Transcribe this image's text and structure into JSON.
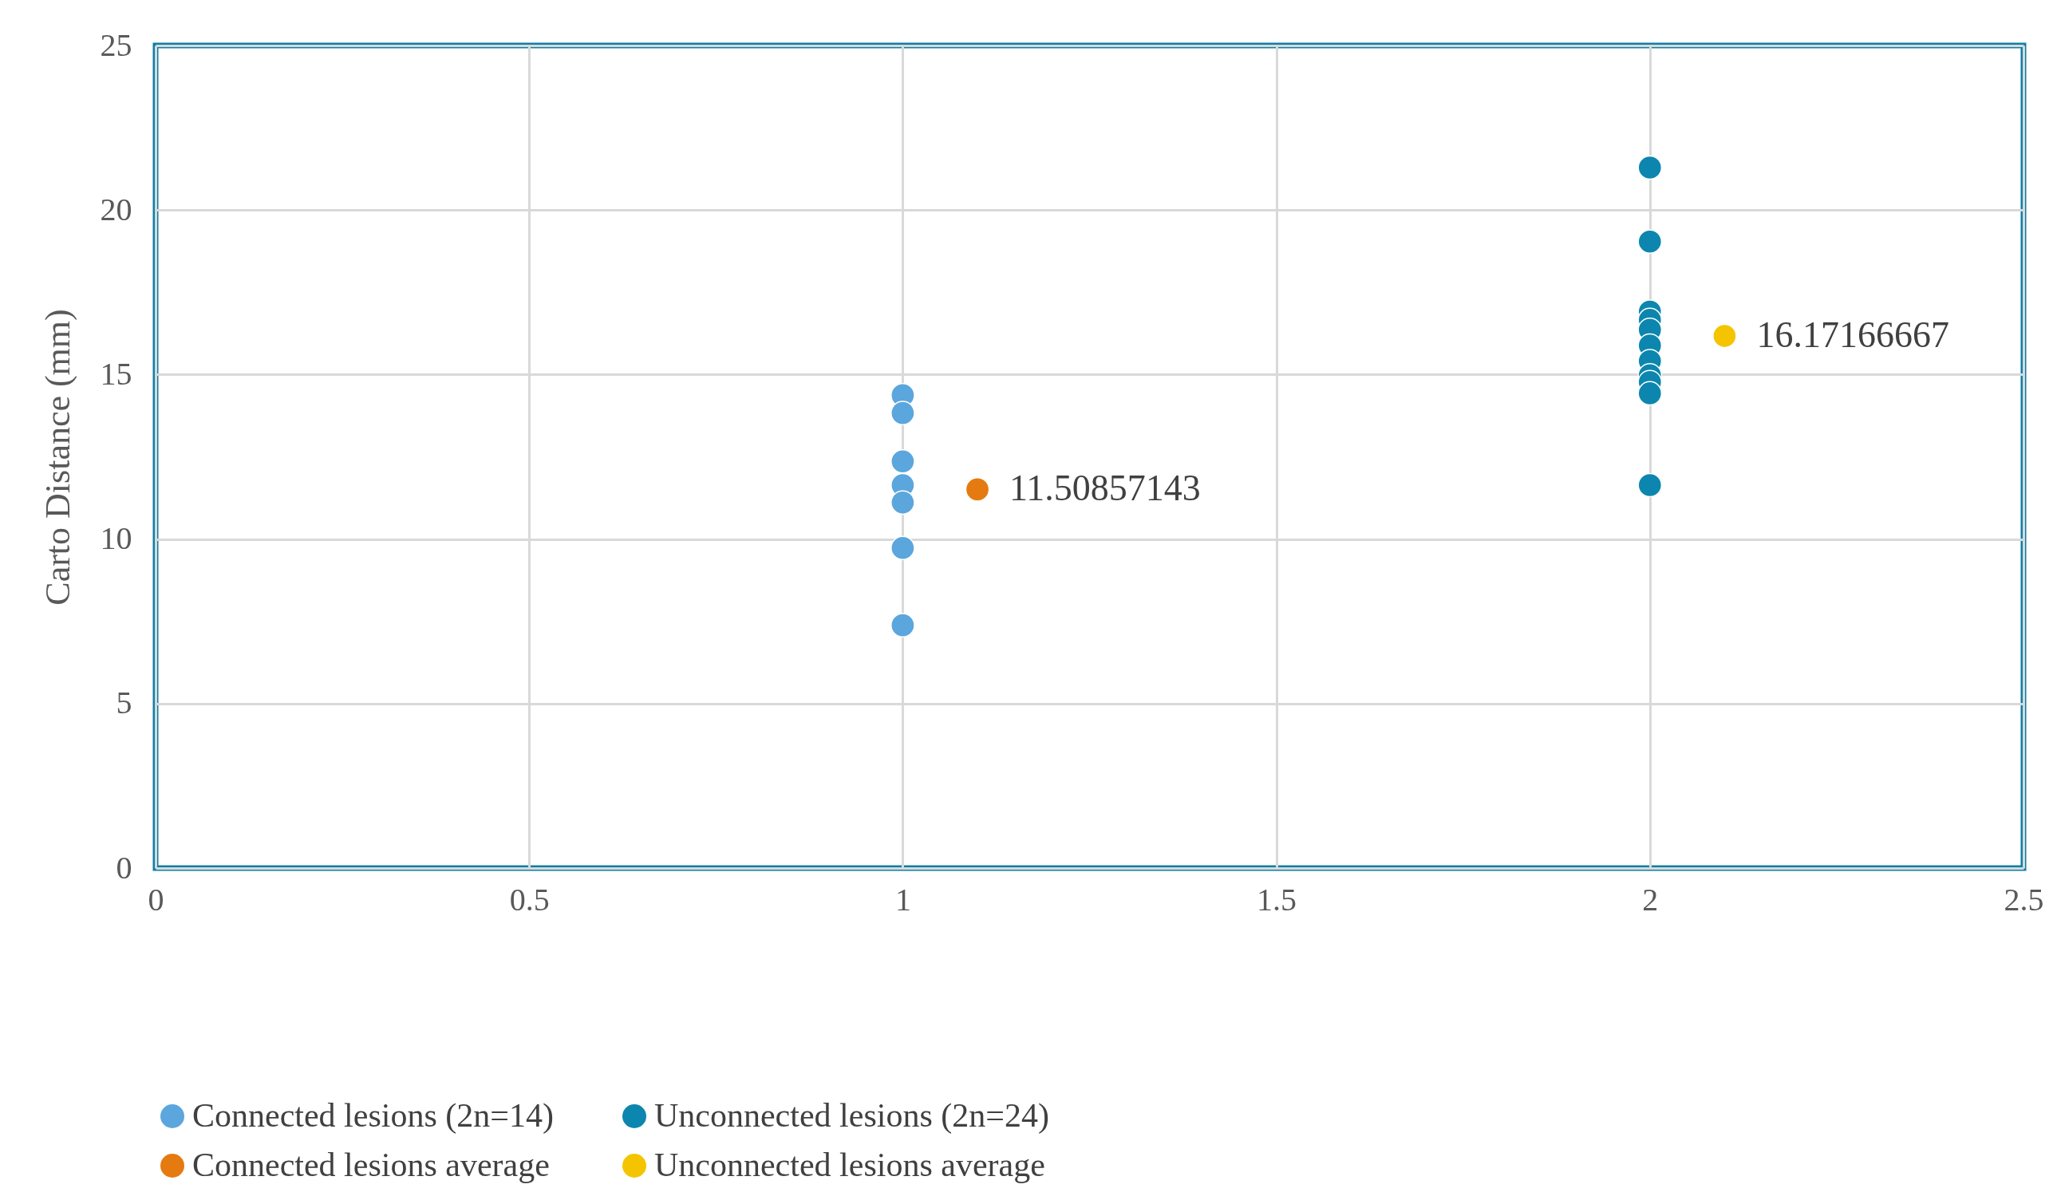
{
  "chart_data": {
    "type": "scatter",
    "ylabel": "Carto Distance (mm)",
    "xlim": [
      0,
      2.5
    ],
    "xticks": [
      0,
      0.5,
      1,
      1.5,
      2,
      2.5
    ],
    "ylim": [
      0,
      25
    ],
    "yticks": [
      0,
      5,
      10,
      15,
      20,
      25
    ],
    "grid": true,
    "legend": "bottom",
    "marker": "circle",
    "series": [
      {
        "name": "Connected lesions (2n=14)",
        "color": "#5ba6dd",
        "x": [
          1,
          1,
          1,
          1,
          1,
          1,
          1
        ],
        "values": [
          14.37,
          13.83,
          12.36,
          11.64,
          11.11,
          9.73,
          7.38
        ]
      },
      {
        "name": "Unconnected lesions (2n=24)",
        "color": "#0c86ae",
        "x": [
          2,
          2,
          2,
          2,
          2,
          2,
          2,
          2,
          2,
          2,
          2
        ],
        "values": [
          21.29,
          19.04,
          16.91,
          16.66,
          16.36,
          15.88,
          15.41,
          14.98,
          14.77,
          14.43,
          11.64
        ]
      },
      {
        "name": "Connected lesions average",
        "color": "#e57a10",
        "x": [
          1.1
        ],
        "values": [
          11.50857143
        ],
        "value_labels": [
          "11.50857143"
        ]
      },
      {
        "name": "Unconnected lesions average",
        "color": "#f5c400",
        "x": [
          2.1
        ],
        "values": [
          16.17166667
        ],
        "value_labels": [
          "16.17166667"
        ]
      }
    ]
  }
}
